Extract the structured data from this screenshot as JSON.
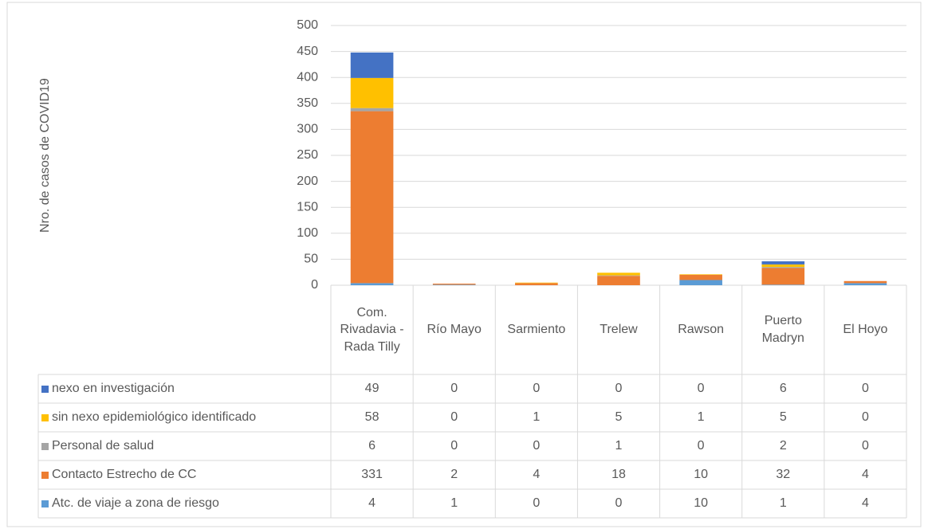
{
  "chart_data": {
    "type": "bar",
    "stacked": true,
    "y_label": "Nro. de casos de COVID19",
    "categories": [
      "Com. Rivadavia - Rada Tilly",
      "Río Mayo",
      "Sarmiento",
      "Trelew",
      "Rawson",
      "Puerto Madryn",
      "El Hoyo"
    ],
    "series": [
      {
        "name": "Atc. de viaje a zona de riesgo",
        "color": "#5b9bd5",
        "values": [
          4,
          1,
          0,
          0,
          10,
          1,
          4
        ]
      },
      {
        "name": "Contacto Estrecho de CC",
        "color": "#ed7d31",
        "values": [
          331,
          2,
          4,
          18,
          10,
          32,
          4
        ]
      },
      {
        "name": "Personal de salud",
        "color": "#a5a5a5",
        "values": [
          6,
          0,
          0,
          1,
          0,
          2,
          0
        ]
      },
      {
        "name": "sin nexo epidemiológico identificado",
        "color": "#ffc000",
        "values": [
          58,
          0,
          1,
          5,
          1,
          5,
          0
        ]
      },
      {
        "name": "nexo en investigación",
        "color": "#4472c4",
        "values": [
          49,
          0,
          0,
          0,
          0,
          6,
          0
        ]
      }
    ],
    "ylim": [
      0,
      500
    ],
    "yticks": [
      0,
      50,
      100,
      150,
      200,
      250,
      300,
      350,
      400,
      450,
      500
    ],
    "grid": true
  }
}
